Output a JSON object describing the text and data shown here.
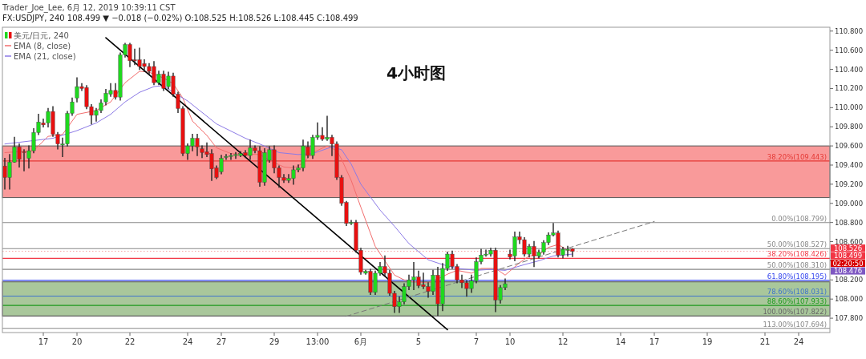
{
  "chart_data": {
    "type": "candlestick",
    "title": "4小时图",
    "legend": "top left",
    "categories": [
      null,
      null,
      null,
      null,
      null,
      null,
      null,
      null,
      "17",
      null,
      null,
      null,
      null,
      null,
      null,
      "20",
      null,
      null,
      null,
      null,
      null,
      null,
      null,
      null,
      null,
      null,
      "22",
      null,
      null,
      null,
      null,
      null,
      null,
      null,
      null,
      null,
      null,
      null,
      "24",
      null,
      null,
      null,
      null,
      null,
      null,
      "27",
      null,
      null,
      null,
      null,
      null,
      null,
      null,
      null,
      null,
      null,
      "29",
      null,
      null,
      null,
      null,
      null,
      null,
      null,
      null,
      "13:00",
      null,
      null,
      null,
      null,
      null,
      null,
      null,
      null,
      "6月",
      null,
      null,
      null,
      null,
      null,
      null,
      null,
      null,
      null,
      null,
      null,
      "5",
      null,
      null,
      null,
      null,
      null,
      null,
      null,
      null,
      null,
      null,
      null,
      "7",
      null,
      null,
      null,
      null,
      null,
      null,
      "10",
      null,
      null,
      null,
      null,
      null,
      null,
      null,
      null,
      null,
      null,
      "12",
      null,
      null,
      null,
      null,
      null,
      null,
      null,
      null,
      null,
      null,
      null,
      "14",
      null,
      null,
      null,
      null,
      null,
      null,
      "17",
      null,
      null,
      null,
      null,
      null,
      null,
      null,
      null,
      null,
      null,
      "19",
      null,
      null,
      null,
      null,
      null,
      null,
      null,
      null,
      null,
      null,
      null,
      "21",
      null,
      null,
      null,
      null,
      null,
      null,
      "24",
      null,
      null,
      null,
      null,
      null,
      null
    ],
    "ylim": [
      107.65,
      110.84
    ],
    "yticks": [
      {
        "value": 107.8,
        "label": "107.800"
      },
      {
        "value": 108,
        "label": "108.000"
      },
      {
        "value": 108.2,
        "label": "108.200"
      },
      {
        "value": 108.4,
        "label": null
      },
      {
        "value": 108.6,
        "label": "108.600"
      },
      {
        "value": 108.8,
        "label": "108.800"
      },
      {
        "value": 109,
        "label": "109.000"
      },
      {
        "value": 109.2,
        "label": "109.200"
      },
      {
        "value": 109.4,
        "label": "109.400"
      },
      {
        "value": 109.6,
        "label": "109.600"
      },
      {
        "value": 109.8,
        "label": "109.800"
      },
      {
        "value": 110,
        "label": "110.000"
      },
      {
        "value": 110.2,
        "label": "110.200"
      },
      {
        "value": 110.4,
        "label": "110.400"
      },
      {
        "value": 110.6,
        "label": "110.600"
      },
      {
        "value": 110.8,
        "label": "110.800"
      }
    ],
    "bands": [
      {
        "axis": "y",
        "from": 109.06,
        "to": 109.6,
        "label": null,
        "color": "#f99a9a"
      },
      {
        "axis": "y",
        "from": 107.822,
        "to": 108.18,
        "label": null,
        "color": "#a9c79b"
      }
    ],
    "ref_lines": [
      {
        "axis": "y",
        "value": 109.443,
        "label": "38.20%(109.443)",
        "color": "#e53935"
      },
      {
        "axis": "y",
        "value": 108.799,
        "label": "0.00%(108.799)",
        "color": "#888888"
      },
      {
        "axis": "y",
        "value": 108.527,
        "label": "50.00%(108.527)",
        "color": "#888888"
      },
      {
        "axis": "y",
        "value": 108.426,
        "label": "38.20%(108.426)",
        "color": "#f23645"
      },
      {
        "axis": "y",
        "value": 108.31,
        "label": "50.00%(108.310)",
        "color": "#888888"
      },
      {
        "axis": "y",
        "value": 108.195,
        "label": "61.80%(108.195)",
        "color": "#3344ee"
      },
      {
        "axis": "y",
        "value": 108.031,
        "label": "78.60%(108.031)",
        "color": "#3f74cc"
      },
      {
        "axis": "y",
        "value": 107.933,
        "label": "88.60%(107.933)",
        "color": "#1e9a1e"
      },
      {
        "axis": "y",
        "value": 107.822,
        "label": "100.00%(107.822)",
        "color": "#666666"
      },
      {
        "axis": "y",
        "value": 107.694,
        "label": "113.00%(107.694)",
        "color": "#888888"
      },
      {
        "axis": "y",
        "value": 108.499,
        "label": null,
        "color": "#f4a0a0",
        "line_style": "dotted"
      }
    ],
    "annotations": [
      "Trader_Joe_Lee, 6月 12, 2019 10:39:11 CST",
      "FX:USDJPY, 240  108.499 ▼ −0.018 (−0.02%)  O:108.525 H:108.526 L:108.445 C:108.499",
      "108.526",
      "108.499",
      "02:20:50",
      "108.476"
    ],
    "series": [
      {
        "name": "美元/日元, 240",
        "colors": [
          "#e81010",
          "#1fd81f",
          "#1fd81f",
          "#e81010",
          "#e81010",
          "#1fd81f",
          "#1fd81f",
          "#1fd81f",
          "#e81010",
          "#1fd81f",
          "#e81010",
          "#e81010",
          "#1fd81f",
          "#1fd81f",
          "#1fd81f",
          "#1fd81f",
          "#e81010",
          "#e81010",
          "#e81010",
          "#1fd81f",
          "#1fd81f",
          "#1fd81f",
          "#1fd81f",
          "#e81010",
          "#1fd81f",
          "#1fd81f",
          "#e81010",
          "#e81010",
          "#e81010",
          "#e81010",
          "#e81010",
          "#e81010",
          "#1fd81f",
          "#e81010",
          "#1fd81f",
          "#e81010",
          "#e81010",
          "#e81010",
          "#1fd81f",
          "#1fd81f",
          "#e81010",
          "#e81010",
          "#e81010",
          "#e81010",
          "#e81010",
          "#1fd81f",
          "#1fd81f",
          "#1fd81f",
          "#1fd81f",
          "#1fd81f",
          "#e81010",
          "#1fd81f",
          "#e81010",
          "#e81010",
          "#1fd81f",
          "#1fd81f",
          "#e81010",
          "#e81010",
          "#e81010",
          "#1fd81f",
          "#1fd81f",
          "#1fd81f",
          "#1fd81f",
          "#e81010",
          "#1fd81f",
          "#1fd81f",
          "#e81010",
          "#1fd81f",
          "#e81010",
          "#e81010",
          "#e81010",
          "#e81010",
          "#1fd81f",
          "#e81010",
          "#e81010",
          "#1fd81f",
          "#e81010",
          "#1fd81f",
          "#1fd81f",
          "#e81010",
          "#e81010",
          "#e81010",
          "#1fd81f",
          "#1fd81f",
          "#1fd81f",
          "#1fd81f",
          "#e81010",
          "#e81010",
          "#e81010",
          "#1fd81f",
          "#e81010",
          "#1fd81f",
          "#1fd81f",
          "#e81010",
          "#e81010",
          "#e81010",
          "#e81010",
          "#1fd81f",
          "#1fd81f",
          "#1fd81f",
          "#1fd81f",
          "#1fd81f",
          "#e81010",
          "#1fd81f",
          "#1fd81f",
          "#e81010",
          "#1fd81f",
          "#e81010",
          "#e81010",
          "#1fd81f",
          "#e81010",
          "#1fd81f",
          "#1fd81f",
          "#1fd81f",
          "#1fd81f",
          "#e81010",
          "#1fd81f",
          "#1fd81f",
          "#e81010",
          null,
          null,
          null,
          null,
          null,
          null,
          null,
          null,
          null,
          null,
          null,
          null,
          null,
          null,
          null,
          null,
          null,
          null,
          null,
          null,
          null,
          null,
          null,
          null,
          null,
          null,
          null,
          null,
          null,
          null,
          null,
          null,
          null,
          null,
          null,
          null,
          null,
          null,
          null,
          null,
          null,
          null,
          null,
          null,
          null,
          null,
          null,
          null,
          null,
          null,
          null,
          null,
          null
        ],
        "ohlc": [
          [
            109.39,
            109.47,
            109.15,
            109.27
          ],
          [
            109.27,
            109.51,
            109.15,
            109.43
          ],
          [
            109.43,
            109.69,
            109.43,
            109.59
          ],
          [
            109.59,
            109.62,
            109.38,
            109.46
          ],
          [
            109.54,
            109.56,
            109.34,
            109.53
          ],
          [
            109.47,
            109.6,
            109.37,
            109.55
          ],
          [
            109.55,
            109.78,
            109.53,
            109.74
          ],
          [
            109.74,
            109.93,
            109.72,
            109.85
          ],
          [
            109.84,
            109.88,
            109.8,
            109.82
          ],
          [
            109.84,
            109.99,
            109.8,
            109.96
          ],
          [
            109.96,
            110.01,
            109.7,
            109.72
          ],
          [
            109.72,
            109.74,
            109.57,
            109.62
          ],
          [
            109.61,
            109.68,
            109.49,
            109.62
          ],
          [
            109.62,
            109.96,
            109.6,
            109.94
          ],
          [
            109.94,
            110.1,
            109.92,
            110.06
          ],
          [
            110.1,
            110.31,
            110.06,
            110.22
          ],
          [
            110.22,
            110.25,
            110.18,
            110.2
          ],
          [
            110.21,
            110.23,
            109.99,
            110.01
          ],
          [
            110.01,
            110.03,
            109.83,
            109.92
          ],
          [
            109.92,
            109.99,
            109.86,
            109.97
          ],
          [
            109.97,
            110.08,
            109.95,
            110.05
          ],
          [
            110.06,
            110.19,
            110.03,
            110.15
          ],
          [
            110.14,
            110.25,
            110.12,
            110.18
          ],
          [
            110.18,
            110.25,
            110.09,
            110.11
          ],
          [
            110.11,
            110.57,
            110.08,
            110.55
          ],
          [
            110.55,
            110.67,
            110.53,
            110.66
          ],
          [
            110.66,
            110.67,
            110.43,
            110.49
          ],
          [
            110.5,
            110.61,
            110.45,
            110.49
          ],
          [
            110.5,
            110.62,
            110.4,
            110.43
          ],
          [
            110.46,
            110.5,
            110.38,
            110.43
          ],
          [
            110.43,
            110.46,
            110.35,
            110.38
          ],
          [
            110.43,
            110.48,
            110.24,
            110.26
          ],
          [
            110.26,
            110.38,
            110.24,
            110.35
          ],
          [
            110.35,
            110.38,
            110.18,
            110.2
          ],
          [
            110.22,
            110.37,
            110.2,
            110.33
          ],
          [
            110.33,
            110.36,
            110.12,
            110.14
          ],
          [
            110.14,
            110.16,
            109.95,
            109.99
          ],
          [
            109.99,
            110.01,
            109.5,
            109.52
          ],
          [
            109.52,
            109.62,
            109.46,
            109.6
          ],
          [
            109.6,
            109.72,
            109.55,
            109.68
          ],
          [
            109.68,
            109.72,
            109.5,
            109.59
          ],
          [
            109.57,
            109.6,
            109.48,
            109.53
          ],
          [
            109.54,
            109.63,
            109.49,
            109.51
          ],
          [
            109.52,
            109.56,
            109.24,
            109.36
          ],
          [
            109.37,
            109.39,
            109.26,
            109.27
          ],
          [
            109.33,
            109.5,
            109.31,
            109.47
          ],
          [
            109.48,
            109.51,
            109.46,
            109.49
          ],
          [
            109.49,
            109.52,
            109.46,
            109.5
          ],
          [
            109.5,
            109.53,
            109.47,
            109.51
          ],
          [
            109.5,
            109.54,
            109.49,
            109.52
          ],
          [
            109.53,
            109.55,
            109.48,
            109.5
          ],
          [
            109.5,
            109.66,
            109.46,
            109.58
          ],
          [
            109.58,
            109.6,
            109.53,
            109.55
          ],
          [
            109.55,
            109.59,
            109.18,
            109.22
          ],
          [
            109.22,
            109.57,
            109.19,
            109.53
          ],
          [
            109.45,
            109.59,
            109.43,
            109.56
          ],
          [
            109.56,
            109.6,
            109.32,
            109.37
          ],
          [
            109.37,
            109.39,
            109.17,
            109.27
          ],
          [
            109.27,
            109.3,
            109.22,
            109.24
          ],
          [
            109.24,
            109.3,
            109.22,
            109.26
          ],
          [
            109.26,
            109.39,
            109.2,
            109.35
          ],
          [
            109.35,
            109.4,
            109.33,
            109.37
          ],
          [
            109.37,
            109.66,
            109.34,
            109.6
          ],
          [
            109.59,
            109.64,
            109.48,
            109.5
          ],
          [
            109.5,
            109.71,
            109.47,
            109.69
          ],
          [
            109.69,
            109.84,
            109.67,
            109.71
          ],
          [
            109.71,
            109.79,
            109.66,
            109.67
          ],
          [
            109.67,
            109.91,
            109.66,
            109.69
          ],
          [
            109.69,
            109.71,
            109.5,
            109.62
          ],
          [
            109.62,
            109.64,
            109.25,
            109.27
          ],
          [
            109.27,
            109.29,
            108.98,
            109
          ],
          [
            109.01,
            109.02,
            108.77,
            108.79
          ],
          [
            108.79,
            108.82,
            108.78,
            108.8
          ],
          [
            108.8,
            108.82,
            108.49,
            108.51
          ],
          [
            108.51,
            108.53,
            108.26,
            108.28
          ],
          [
            108.27,
            108.3,
            108.26,
            108.29
          ],
          [
            108.29,
            108.31,
            108.05,
            108.07
          ],
          [
            108.07,
            108.29,
            108.05,
            108.27
          ],
          [
            108.27,
            108.38,
            108.25,
            108.34
          ],
          [
            108.34,
            108.45,
            108.25,
            108.27
          ],
          [
            108.27,
            108.3,
            108.04,
            108.06
          ],
          [
            108.06,
            108.08,
            107.86,
            107.92
          ],
          [
            107.92,
            108.02,
            107.86,
            107.97
          ],
          [
            107.97,
            108.16,
            107.95,
            108.13
          ],
          [
            108.13,
            108.25,
            108.1,
            108.2
          ],
          [
            108.2,
            108.38,
            108.1,
            108.23
          ],
          [
            108.23,
            108.29,
            108.12,
            108.14
          ],
          [
            108.15,
            108.27,
            108.11,
            108.13
          ],
          [
            108.13,
            108.17,
            108.02,
            108.08
          ],
          [
            108.08,
            108.3,
            108.05,
            108.25
          ],
          [
            108.25,
            108.33,
            107.83,
            107.95
          ],
          [
            107.95,
            108.37,
            107.88,
            108.32
          ],
          [
            108.32,
            108.49,
            108.3,
            108.47
          ],
          [
            108.47,
            108.5,
            108.32,
            108.34
          ],
          [
            108.34,
            108.36,
            108.17,
            108.2
          ],
          [
            108.2,
            108.25,
            108.12,
            108.17
          ],
          [
            108.17,
            108.19,
            108.03,
            108.11
          ],
          [
            108.11,
            108.25,
            108.07,
            108.19
          ],
          [
            108.19,
            108.43,
            108.17,
            108.39
          ],
          [
            108.39,
            108.52,
            108.37,
            108.46
          ],
          [
            108.46,
            108.51,
            108.45,
            108.47
          ],
          [
            108.47,
            108.53,
            108.45,
            108.51
          ],
          [
            108.51,
            108.53,
            107.87,
            107.99
          ],
          [
            107.99,
            108.14,
            107.96,
            108.12
          ],
          [
            108.12,
            108.21,
            108.1,
            108.16
          ],
          [
            108.47,
            108.51,
            108.42,
            108.44
          ],
          [
            108.45,
            108.7,
            108.4,
            108.65
          ],
          [
            108.65,
            108.7,
            108.58,
            108.62
          ],
          [
            108.62,
            108.64,
            108.45,
            108.47
          ],
          [
            108.47,
            108.57,
            108.44,
            108.55
          ],
          [
            108.55,
            108.6,
            108.34,
            108.45
          ],
          [
            108.45,
            108.51,
            108.43,
            108.49
          ],
          [
            108.49,
            108.61,
            108.47,
            108.59
          ],
          [
            108.59,
            108.69,
            108.57,
            108.67
          ],
          [
            108.67,
            108.79,
            108.66,
            108.69
          ],
          [
            108.69,
            108.71,
            108.44,
            108.46
          ],
          [
            108.46,
            108.54,
            108.43,
            108.52
          ],
          [
            108.51,
            108.55,
            108.45,
            108.52
          ],
          [
            108.525,
            108.526,
            108.445,
            108.499
          ],
          null,
          null,
          null,
          null,
          null,
          null,
          null,
          null,
          null,
          null,
          null,
          null,
          null,
          null,
          null,
          null,
          null,
          null,
          null,
          null,
          null,
          null,
          null,
          null,
          null,
          null,
          null,
          null,
          null,
          null,
          null,
          null,
          null,
          null,
          null,
          null,
          null,
          null,
          null,
          null,
          null,
          null,
          null,
          null,
          null,
          null,
          null,
          null,
          null,
          null,
          null,
          null,
          null
        ]
      },
      {
        "name": "EMA (8, close)",
        "type": "line",
        "color": "#f26d6d",
        "values": [
          109.53,
          null,
          null,
          null,
          null,
          null,
          109.55,
          null,
          null,
          109.7,
          null,
          null,
          109.72,
          null,
          null,
          109.93,
          null,
          null,
          null,
          109.97,
          null,
          null,
          110.06,
          null,
          null,
          110.26,
          null,
          null,
          110.38,
          null,
          110.37,
          null,
          null,
          110.31,
          null,
          110.25,
          null,
          110.1,
          null,
          109.86,
          null,
          null,
          109.71,
          null,
          109.58,
          null,
          null,
          109.52,
          null,
          null,
          null,
          null,
          null,
          109.51,
          null,
          109.45,
          null,
          null,
          109.38,
          null,
          109.37,
          null,
          109.42,
          null,
          109.53,
          null,
          null,
          109.6,
          null,
          109.55,
          109.46,
          null,
          109.24,
          null,
          108.96,
          null,
          null,
          108.55,
          null,
          108.4,
          null,
          108.25,
          null,
          108.2,
          null,
          108.18,
          null,
          null,
          108.17,
          null,
          108.21,
          null,
          108.26,
          null,
          108.3,
          null,
          null,
          108.27,
          null,
          108.32,
          null,
          null,
          108.32,
          null,
          108.25,
          null,
          null,
          108.38,
          null,
          108.45,
          null,
          108.46,
          null,
          108.54,
          null,
          108.57,
          null,
          108.51,
          108.5,
          null,
          null,
          null,
          null,
          null,
          null,
          null,
          null,
          null,
          null,
          null,
          null,
          null,
          null,
          null,
          null,
          null,
          null,
          null,
          null,
          null,
          null,
          null,
          null,
          null,
          null,
          null,
          null,
          null,
          null,
          null,
          null,
          null,
          null,
          null,
          null,
          null,
          null,
          null,
          null,
          null,
          null,
          null,
          null,
          null,
          null,
          null,
          null,
          null,
          null,
          null,
          null,
          null
        ]
      },
      {
        "name": "EMA (21, close)",
        "type": "line",
        "color": "#8c7ae6",
        "values": [
          109.62,
          null,
          null,
          null,
          null,
          null,
          null,
          null,
          null,
          null,
          109.68,
          null,
          null,
          null,
          null,
          109.76,
          null,
          null,
          null,
          109.84,
          null,
          null,
          109.93,
          null,
          null,
          110.06,
          null,
          null,
          110.16,
          null,
          null,
          110.22,
          null,
          110.23,
          null,
          110.16,
          null,
          null,
          110.07,
          null,
          109.99,
          null,
          null,
          null,
          109.83,
          null,
          null,
          null,
          null,
          null,
          109.68,
          null,
          null,
          109.62,
          null,
          null,
          null,
          109.53,
          null,
          null,
          null,
          109.51,
          null,
          null,
          109.52,
          null,
          null,
          null,
          109.59,
          null,
          109.56,
          null,
          109.41,
          null,
          109.2,
          null,
          null,
          null,
          108.93,
          null,
          null,
          108.76,
          null,
          null,
          108.58,
          null,
          null,
          null,
          108.41,
          null,
          null,
          108.36,
          null,
          null,
          108.32,
          null,
          null,
          null,
          108.3,
          null,
          null,
          108.31,
          null,
          null,
          108.3,
          null,
          null,
          null,
          108.36,
          null,
          null,
          108.4,
          null,
          null,
          108.45,
          null,
          null,
          null,
          108.47,
          null,
          null,
          null,
          null,
          null,
          null,
          null,
          null,
          null,
          null,
          null,
          null,
          null,
          null,
          null,
          null,
          null,
          null,
          null,
          null,
          null,
          null,
          null,
          null,
          null,
          null,
          null,
          null,
          null,
          null,
          null,
          null,
          null,
          null,
          null,
          null,
          null,
          null,
          null,
          null,
          null,
          null,
          null,
          null,
          null,
          null,
          null,
          null,
          null,
          null,
          null,
          null,
          null
        ]
      },
      {
        "type": "line",
        "color": "#000000",
        "values": [
          null,
          null,
          null,
          null,
          null,
          null,
          null,
          null,
          null,
          null,
          null,
          null,
          null,
          null,
          null,
          null,
          null,
          null,
          null,
          null,
          null,
          110.73,
          null,
          null,
          null,
          null,
          null,
          null,
          null,
          null,
          null,
          null,
          null,
          null,
          null,
          null,
          null,
          null,
          null,
          null,
          null,
          null,
          null,
          null,
          null,
          null,
          null,
          null,
          null,
          null,
          null,
          null,
          null,
          null,
          null,
          null,
          null,
          null,
          null,
          null,
          null,
          null,
          null,
          null,
          null,
          null,
          null,
          null,
          null,
          null,
          null,
          null,
          null,
          null,
          null,
          null,
          null,
          null,
          null,
          null,
          null,
          null,
          null,
          null,
          null,
          null,
          null,
          null,
          null,
          null,
          null,
          null,
          107.68,
          null,
          null,
          null,
          null,
          null,
          null,
          null,
          null,
          null,
          null,
          null,
          null,
          null,
          null,
          null,
          null,
          null,
          null,
          null,
          null,
          null,
          null,
          null,
          null,
          null,
          null,
          null,
          null,
          null,
          null,
          null,
          null,
          null,
          null,
          null,
          null,
          null,
          null,
          null,
          null,
          null,
          null,
          null,
          null,
          null,
          null,
          null,
          null,
          null,
          null,
          null,
          null,
          null,
          null,
          null,
          null,
          null,
          null,
          null,
          null,
          null,
          null,
          null,
          null,
          null,
          null,
          null,
          null,
          null,
          null,
          null,
          null,
          null,
          null,
          null,
          null,
          null,
          null,
          null
        ]
      },
      {
        "type": "line",
        "color": "#777777",
        "line_style": "dashed",
        "values": [
          null,
          null,
          null,
          null,
          null,
          null,
          null,
          null,
          null,
          null,
          null,
          null,
          null,
          null,
          null,
          null,
          null,
          null,
          null,
          null,
          null,
          null,
          null,
          null,
          null,
          null,
          null,
          null,
          null,
          null,
          null,
          null,
          null,
          null,
          null,
          null,
          null,
          null,
          null,
          null,
          null,
          null,
          null,
          null,
          null,
          null,
          null,
          null,
          null,
          null,
          null,
          null,
          null,
          null,
          null,
          null,
          null,
          null,
          null,
          null,
          null,
          null,
          null,
          null,
          null,
          null,
          null,
          null,
          null,
          null,
          null,
          107.82,
          null,
          null,
          null,
          null,
          null,
          null,
          null,
          null,
          null,
          null,
          null,
          null,
          null,
          null,
          null,
          null,
          null,
          null,
          null,
          null,
          null,
          null,
          null,
          null,
          null,
          null,
          null,
          null,
          null,
          null,
          null,
          null,
          null,
          null,
          null,
          null,
          null,
          null,
          null,
          null,
          null,
          null,
          null,
          null,
          null,
          null,
          null,
          null,
          null,
          null,
          null,
          null,
          null,
          null,
          null,
          null,
          null,
          null,
          null,
          null,
          null,
          null,
          null,
          108.81,
          null,
          null,
          null,
          null,
          null,
          null,
          null,
          null,
          null,
          null,
          null,
          null,
          null,
          null,
          null,
          null,
          null,
          null,
          null,
          null,
          null,
          null,
          null,
          null,
          null,
          null,
          null,
          null,
          null,
          null,
          null,
          null,
          null,
          null,
          null,
          null
        ]
      }
    ]
  }
}
